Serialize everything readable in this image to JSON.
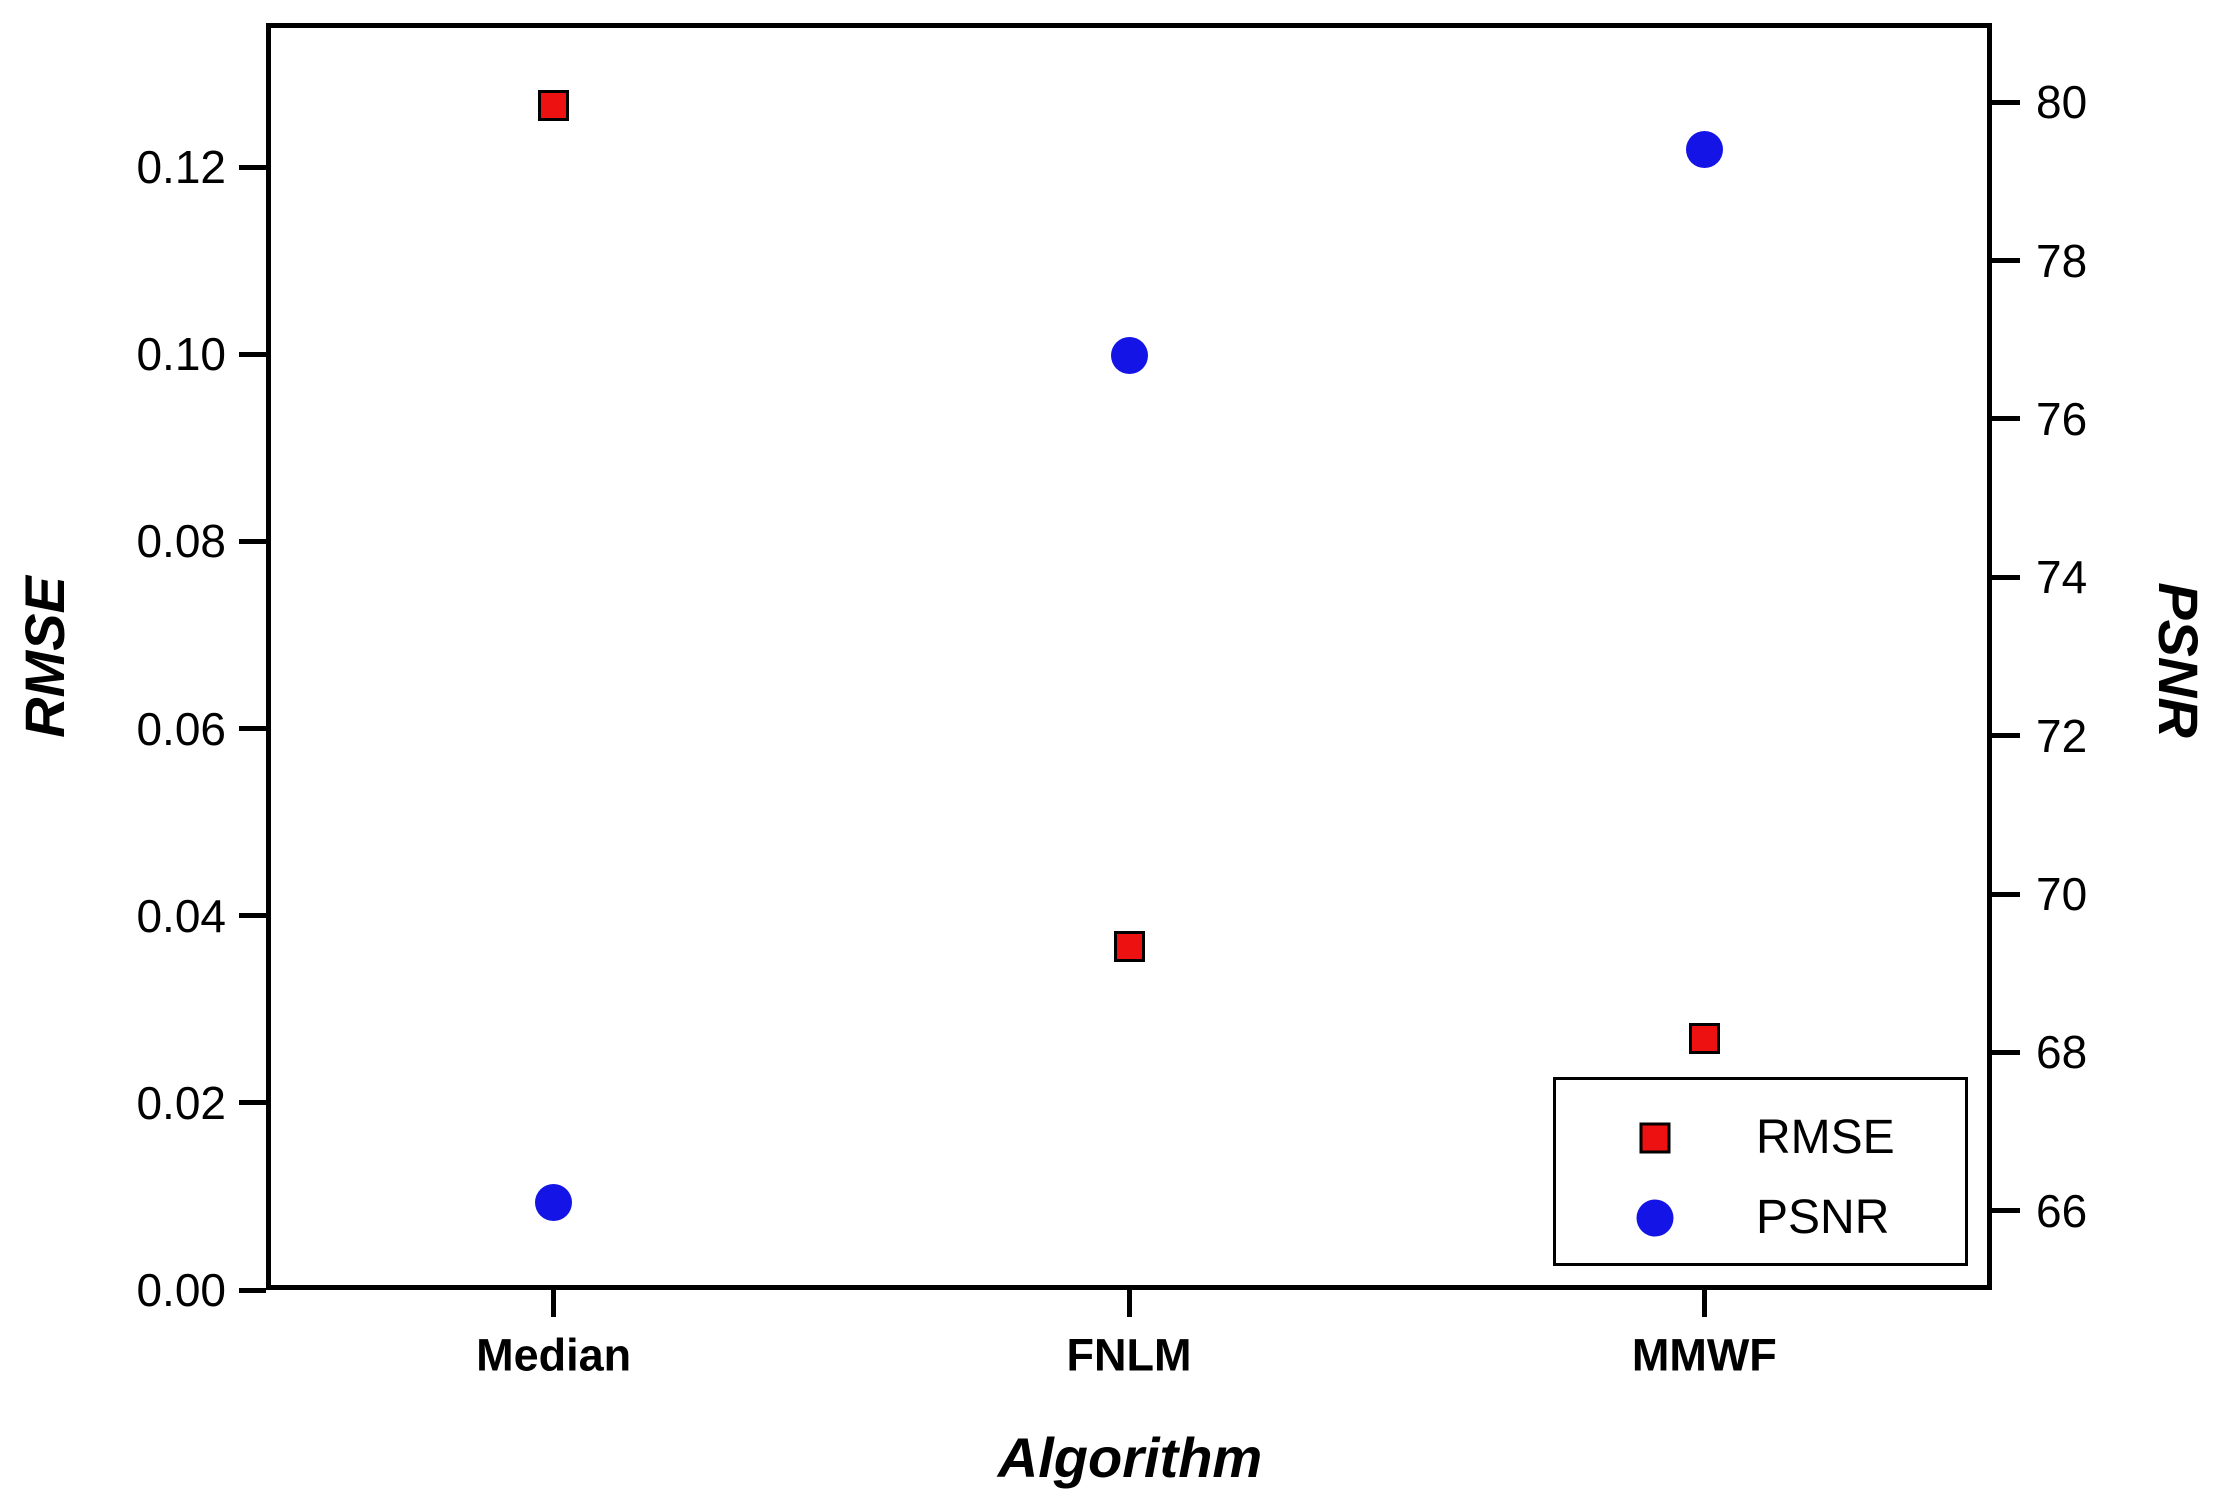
{
  "chart_data": {
    "type": "scatter",
    "categories": [
      "Median",
      "FNLM",
      "MMWF"
    ],
    "series": [
      {
        "name": "RMSE",
        "axis": "left",
        "marker": "square",
        "color": "#ee1111",
        "edge_color": "#000000",
        "values": [
          0.1266,
          0.0367,
          0.0269
        ]
      },
      {
        "name": "PSNR",
        "axis": "right",
        "marker": "circle",
        "color": "#1414e6",
        "edge_color": "#1414e6",
        "values": [
          66.1,
          76.8,
          79.4
        ]
      }
    ],
    "x_axis": {
      "title": "Algorithm"
    },
    "left_axis": {
      "title": "RMSE",
      "min": 0,
      "max": 0.1354,
      "ticks": [
        0.0,
        0.02,
        0.04,
        0.06,
        0.08,
        0.1,
        0.12
      ],
      "tick_labels": [
        "0.00",
        "0.02",
        "0.04",
        "0.06",
        "0.08",
        "0.10",
        "0.12"
      ]
    },
    "right_axis": {
      "title": "PSNR",
      "min": 65,
      "max": 81,
      "ticks": [
        66,
        68,
        70,
        72,
        74,
        76,
        78,
        80
      ],
      "tick_labels": [
        "66",
        "68",
        "70",
        "72",
        "74",
        "76",
        "78",
        "80"
      ]
    },
    "legend": {
      "position": "bottom-right",
      "entries": [
        "RMSE",
        "PSNR"
      ]
    },
    "grid": false,
    "background": "#ffffff"
  }
}
